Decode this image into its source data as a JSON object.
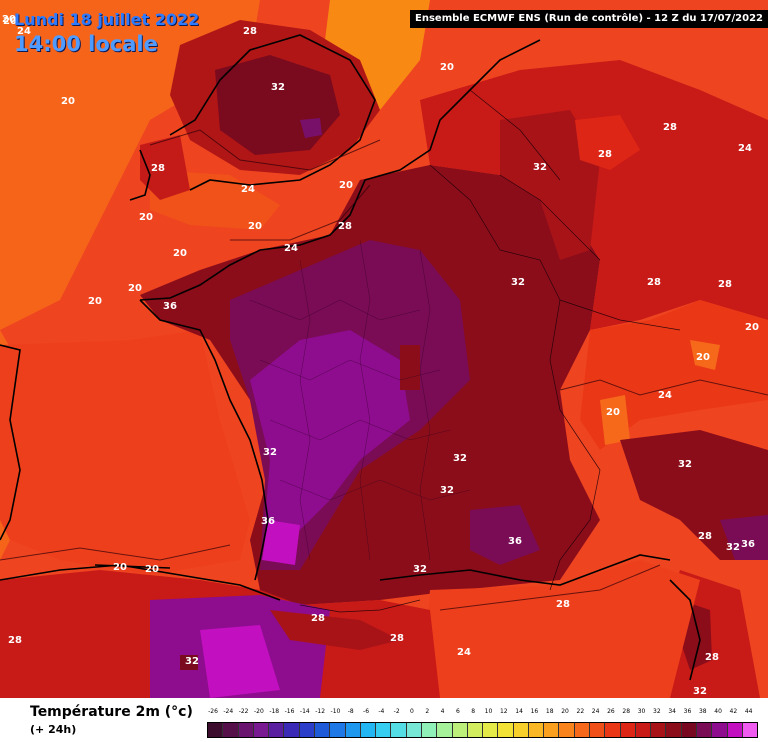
{
  "header": {
    "date": "Lundi 18 juillet 2022",
    "time": "14:00 locale",
    "corner_label": "20",
    "run_info": "Ensemble ECMWF ENS  (Run de contrôle)  -  12 Z du 17/07/2022"
  },
  "legend": {
    "title": "Température 2m (°c)",
    "subtitle": "(+ 24h)",
    "ticks": [
      "-26",
      "-24",
      "-22",
      "-20",
      "-18",
      "-16",
      "-14",
      "-12",
      "-10",
      "-8",
      "-6",
      "-4",
      "-2",
      "0",
      "2",
      "4",
      "6",
      "8",
      "10",
      "12",
      "14",
      "16",
      "18",
      "20",
      "22",
      "24",
      "26",
      "28",
      "30",
      "32",
      "34",
      "36",
      "38",
      "40",
      "42",
      "44"
    ],
    "colors": [
      "#3d0d2d",
      "#55104a",
      "#6a1470",
      "#7a1a92",
      "#5a1fa0",
      "#3b2ab5",
      "#2a3ec9",
      "#1f5ad8",
      "#1e78e6",
      "#1e98ee",
      "#22b6f2",
      "#35cdf0",
      "#55dde6",
      "#76e8d5",
      "#8ff0b8",
      "#a6f29a",
      "#bdf07a",
      "#d2ee5e",
      "#e4ea47",
      "#f2e236",
      "#f8d02c",
      "#fab824",
      "#fb9f1f",
      "#f9841c",
      "#f6691a",
      "#f14f18",
      "#ea3817",
      "#de2616",
      "#c81a17",
      "#a81318",
      "#8b0d1a",
      "#78081f",
      "#7a0b55",
      "#8e0c8e",
      "#c20fc0",
      "#f05cf0"
    ]
  },
  "colors": {
    "ocean": "#f14a1c",
    "ocean_west": "#f65d17",
    "land_hot": "#b01616",
    "land_very_hot": "#7a0a1e",
    "extreme": "#78106a",
    "extreme_peak": "#9c12a0",
    "mid": "#de2a18",
    "date_text": "#2e7bff"
  },
  "map": {
    "isotherm_labels": [
      {
        "id": "lbl-1",
        "text": "20"
      },
      {
        "id": "lbl-2",
        "text": "24"
      },
      {
        "id": "lbl-3",
        "text": "20"
      },
      {
        "id": "lbl-4",
        "text": "28"
      },
      {
        "id": "lbl-5",
        "text": "32"
      },
      {
        "id": "lbl-6",
        "text": "20"
      },
      {
        "id": "lbl-7",
        "text": "28"
      },
      {
        "id": "lbl-8",
        "text": "24"
      },
      {
        "id": "lbl-9",
        "text": "20"
      },
      {
        "id": "lbl-10",
        "text": "20"
      },
      {
        "id": "lbl-11",
        "text": "20"
      },
      {
        "id": "lbl-12",
        "text": "28"
      },
      {
        "id": "lbl-13",
        "text": "24"
      },
      {
        "id": "lbl-14",
        "text": "20"
      },
      {
        "id": "lbl-15",
        "text": "20"
      },
      {
        "id": "lbl-16",
        "text": "20"
      },
      {
        "id": "lbl-17",
        "text": "36"
      },
      {
        "id": "lbl-18",
        "text": "32"
      },
      {
        "id": "lbl-19",
        "text": "28"
      },
      {
        "id": "lbl-20",
        "text": "28"
      },
      {
        "id": "lbl-21",
        "text": "24"
      },
      {
        "id": "lbl-22",
        "text": "32"
      },
      {
        "id": "lbl-23",
        "text": "28"
      },
      {
        "id": "lbl-24",
        "text": "28"
      },
      {
        "id": "lbl-25",
        "text": "20"
      },
      {
        "id": "lbl-26",
        "text": "20"
      },
      {
        "id": "lbl-27",
        "text": "20"
      },
      {
        "id": "lbl-28",
        "text": "24"
      },
      {
        "id": "lbl-29",
        "text": "32"
      },
      {
        "id": "lbl-30",
        "text": "32"
      },
      {
        "id": "lbl-31",
        "text": "32"
      },
      {
        "id": "lbl-32",
        "text": "36"
      },
      {
        "id": "lbl-33",
        "text": "36"
      },
      {
        "id": "lbl-34",
        "text": "20"
      },
      {
        "id": "lbl-35",
        "text": "20"
      },
      {
        "id": "lbl-36",
        "text": "32"
      },
      {
        "id": "lbl-37",
        "text": "28"
      },
      {
        "id": "lbl-38",
        "text": "28"
      },
      {
        "id": "lbl-39",
        "text": "28"
      },
      {
        "id": "lbl-40",
        "text": "32"
      },
      {
        "id": "lbl-41",
        "text": "36"
      },
      {
        "id": "lbl-42",
        "text": "28"
      },
      {
        "id": "lbl-43",
        "text": "32"
      },
      {
        "id": "lbl-44",
        "text": "24"
      },
      {
        "id": "lbl-45",
        "text": "28"
      },
      {
        "id": "lbl-46",
        "text": "32"
      },
      {
        "id": "lbl-47",
        "text": "28"
      },
      {
        "id": "lbl-48",
        "text": "32"
      }
    ]
  }
}
